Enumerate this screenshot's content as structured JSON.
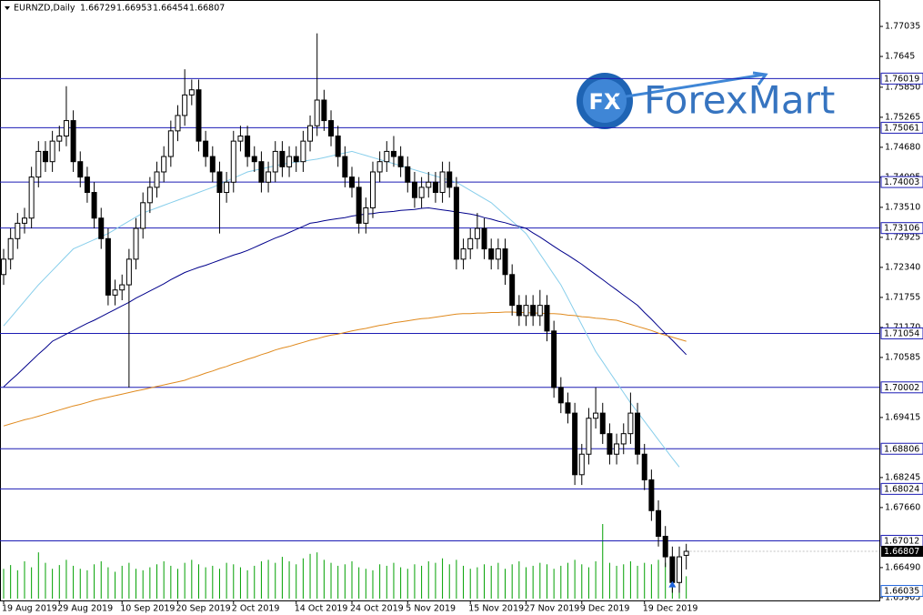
{
  "chart_data": {
    "type": "candlestick",
    "title": "EURNZD,Daily",
    "watermark": "ForexMart",
    "logo_text": "FX",
    "categories": [
      "19 Aug 2019",
      null,
      null,
      null,
      null,
      null,
      null,
      null,
      "29 Aug 2019",
      null,
      null,
      null,
      null,
      null,
      null,
      null,
      null,
      "10 Sep 2019",
      null,
      null,
      null,
      null,
      null,
      null,
      null,
      "20 Sep 2019",
      null,
      null,
      null,
      null,
      null,
      null,
      null,
      "2 Oct 2019",
      null,
      null,
      null,
      null,
      null,
      null,
      null,
      null,
      "14 Oct 2019",
      null,
      null,
      null,
      null,
      null,
      null,
      null,
      "24 Oct 2019",
      null,
      null,
      null,
      null,
      null,
      null,
      null,
      "5 Nov 2019",
      null,
      null,
      null,
      null,
      null,
      null,
      null,
      null,
      "15 Nov 2019",
      null,
      null,
      null,
      null,
      null,
      null,
      null,
      "27 Nov 2019",
      null,
      null,
      null,
      null,
      null,
      null,
      null,
      "9 Dec 2019",
      null,
      null,
      null,
      null,
      null,
      null,
      null,
      null,
      "19 Dec 2019",
      null,
      null,
      null,
      null,
      null,
      null
    ],
    "open": [
      1.722,
      1.725,
      1.729,
      1.732,
      1.733,
      1.741,
      1.746,
      1.744,
      1.748,
      1.749,
      1.752,
      1.744,
      1.741,
      1.738,
      1.733,
      1.729,
      1.718,
      1.719,
      1.72,
      1.725,
      1.731,
      1.736,
      1.739,
      1.742,
      1.745,
      1.75,
      1.753,
      1.757,
      1.758,
      1.748,
      1.745,
      1.742,
      1.738,
      1.74,
      1.748,
      1.749,
      1.745,
      1.744,
      1.74,
      1.742,
      1.746,
      1.743,
      1.745,
      1.744,
      1.748,
      1.751,
      1.756,
      1.752,
      1.749,
      1.745,
      1.741,
      1.739,
      1.732,
      1.735,
      1.742,
      1.744,
      1.746,
      1.745,
      1.743,
      1.74,
      1.737,
      1.739,
      1.74,
      1.738,
      1.742,
      1.739,
      1.725,
      1.727,
      1.729,
      1.731,
      1.727,
      1.725,
      1.727,
      1.722,
      1.716,
      1.714,
      1.716,
      1.714,
      1.716,
      1.711,
      1.7,
      1.697,
      1.695,
      1.683,
      1.687,
      1.694,
      1.695,
      1.691,
      1.687,
      1.689,
      1.691,
      1.695,
      1.687,
      1.682,
      1.676,
      1.671,
      1.667,
      1.662,
      1.66729
    ],
    "high": [
      1.727,
      1.731,
      1.734,
      1.735,
      1.743,
      1.748,
      1.748,
      1.75,
      1.751,
      1.7587,
      1.754,
      1.746,
      1.743,
      1.74,
      1.735,
      1.731,
      1.721,
      1.722,
      1.727,
      1.733,
      1.738,
      1.741,
      1.744,
      1.747,
      1.752,
      1.755,
      1.762,
      1.76,
      1.76,
      1.75,
      1.747,
      1.744,
      1.742,
      1.75,
      1.751,
      1.751,
      1.747,
      1.746,
      1.744,
      1.748,
      1.748,
      1.747,
      1.747,
      1.75,
      1.753,
      1.769,
      1.758,
      1.754,
      1.751,
      1.747,
      1.743,
      1.741,
      1.737,
      1.744,
      1.746,
      1.748,
      1.749,
      1.747,
      1.745,
      1.742,
      1.741,
      1.742,
      1.742,
      1.744,
      1.744,
      1.741,
      1.729,
      1.731,
      1.734,
      1.733,
      1.729,
      1.729,
      1.729,
      1.724,
      1.718,
      1.718,
      1.718,
      1.719,
      1.718,
      1.713,
      1.702,
      1.699,
      1.697,
      1.689,
      1.696,
      1.7,
      1.697,
      1.693,
      1.691,
      1.693,
      1.699,
      1.697,
      1.689,
      1.684,
      1.678,
      1.673,
      1.669,
      1.669,
      1.66953
    ],
    "low": [
      1.72,
      1.723,
      1.727,
      1.73,
      1.731,
      1.739,
      1.742,
      1.742,
      1.746,
      1.747,
      1.742,
      1.739,
      1.736,
      1.731,
      1.727,
      1.716,
      1.716,
      1.717,
      1.7,
      1.723,
      1.729,
      1.734,
      1.737,
      1.74,
      1.743,
      1.748,
      1.751,
      1.755,
      1.746,
      1.743,
      1.74,
      1.73,
      1.736,
      1.738,
      1.746,
      1.743,
      1.742,
      1.738,
      1.738,
      1.74,
      1.741,
      1.741,
      1.742,
      1.742,
      1.746,
      1.749,
      1.75,
      1.747,
      1.743,
      1.739,
      1.737,
      1.73,
      1.73,
      1.733,
      1.74,
      1.742,
      1.743,
      1.741,
      1.738,
      1.735,
      1.735,
      1.737,
      1.736,
      1.736,
      1.737,
      1.723,
      1.723,
      1.725,
      1.727,
      1.725,
      1.723,
      1.723,
      1.72,
      1.714,
      1.712,
      1.712,
      1.712,
      1.712,
      1.709,
      1.698,
      1.695,
      1.693,
      1.681,
      1.681,
      1.685,
      1.692,
      1.689,
      1.685,
      1.685,
      1.687,
      1.689,
      1.685,
      1.68,
      1.674,
      1.669,
      1.665,
      1.66,
      1.66,
      1.66454
    ],
    "close": [
      1.725,
      1.729,
      1.732,
      1.733,
      1.741,
      1.746,
      1.744,
      1.748,
      1.749,
      1.752,
      1.744,
      1.741,
      1.738,
      1.733,
      1.729,
      1.718,
      1.719,
      1.72,
      1.725,
      1.731,
      1.736,
      1.739,
      1.742,
      1.745,
      1.75,
      1.753,
      1.757,
      1.758,
      1.748,
      1.745,
      1.742,
      1.738,
      1.74,
      1.748,
      1.749,
      1.745,
      1.744,
      1.74,
      1.742,
      1.746,
      1.743,
      1.745,
      1.744,
      1.748,
      1.751,
      1.756,
      1.752,
      1.749,
      1.745,
      1.741,
      1.739,
      1.732,
      1.735,
      1.742,
      1.744,
      1.746,
      1.745,
      1.743,
      1.74,
      1.737,
      1.739,
      1.74,
      1.738,
      1.742,
      1.739,
      1.725,
      1.727,
      1.729,
      1.731,
      1.727,
      1.725,
      1.727,
      1.722,
      1.716,
      1.714,
      1.716,
      1.714,
      1.716,
      1.711,
      1.7,
      1.697,
      1.695,
      1.683,
      1.687,
      1.694,
      1.695,
      1.691,
      1.687,
      1.689,
      1.691,
      1.695,
      1.687,
      1.682,
      1.676,
      1.671,
      1.667,
      1.662,
      1.667,
      1.66807
    ],
    "volumes": [
      40,
      45,
      38,
      50,
      42,
      62,
      48,
      40,
      45,
      52,
      44,
      40,
      38,
      46,
      50,
      42,
      36,
      44,
      48,
      40,
      38,
      42,
      46,
      50,
      44,
      40,
      48,
      52,
      46,
      42,
      44,
      40,
      48,
      46,
      42,
      38,
      44,
      50,
      52,
      48,
      56,
      50,
      46,
      54,
      60,
      62,
      52,
      48,
      44,
      46,
      50,
      42,
      40,
      38,
      46,
      44,
      48,
      42,
      40,
      46,
      44,
      50,
      48,
      54,
      46,
      52,
      44,
      40,
      42,
      46,
      44,
      48,
      40,
      46,
      50,
      42,
      44,
      48,
      46,
      40,
      44,
      48,
      52,
      46,
      42,
      50,
      100,
      48,
      44,
      46,
      50,
      44,
      48,
      46,
      52,
      48,
      46,
      50,
      30
    ],
    "volume_color": "#00a000",
    "moving_averages": [
      {
        "color": "#87ceeb",
        "values": [
          1.712,
          1.7136,
          1.7152,
          1.7168,
          1.7184,
          1.72,
          1.7214,
          1.7228,
          1.7242,
          1.7256,
          1.727,
          1.7276,
          1.7282,
          1.7288,
          1.7294,
          1.73,
          1.7308,
          1.7316,
          1.7324,
          1.7332,
          1.734,
          1.7345,
          1.735,
          1.7355,
          1.736,
          1.7365,
          1.737,
          1.7375,
          1.738,
          1.7385,
          1.739,
          1.7396,
          1.7402,
          1.7408,
          1.7414,
          1.742,
          1.7423,
          1.7426,
          1.7429,
          1.7432,
          1.7435,
          1.7437,
          1.7439,
          1.7441,
          1.7443,
          1.7445,
          1.7448,
          1.7451,
          1.7454,
          1.7457,
          1.746,
          1.7456,
          1.7452,
          1.7448,
          1.7444,
          1.744,
          1.7436,
          1.7432,
          1.7428,
          1.7424,
          1.742,
          1.7416,
          1.7412,
          1.7408,
          1.7404,
          1.74,
          1.7392,
          1.7384,
          1.7376,
          1.7368,
          1.736,
          1.7348,
          1.7336,
          1.7324,
          1.7312,
          1.73,
          1.728,
          1.726,
          1.724,
          1.722,
          1.72,
          1.7174,
          1.7148,
          1.7122,
          1.7096,
          1.707,
          1.705,
          1.703,
          1.701,
          1.699,
          1.697,
          1.6952,
          1.6934,
          1.6916,
          1.6898,
          1.688,
          1.6862,
          1.6845,
          null
        ]
      },
      {
        "color": "#00008b",
        "values": [
          1.7001,
          1.7014,
          1.7026,
          1.7039,
          1.7052,
          1.7065,
          1.7077,
          1.709,
          1.7097,
          1.7104,
          1.7111,
          1.7118,
          1.7125,
          1.7131,
          1.7138,
          1.7145,
          1.7152,
          1.7159,
          1.7166,
          1.7174,
          1.7181,
          1.7188,
          1.7195,
          1.7202,
          1.721,
          1.7217,
          1.7224,
          1.7229,
          1.7234,
          1.7238,
          1.7243,
          1.7248,
          1.7253,
          1.7258,
          1.7262,
          1.7267,
          1.7273,
          1.7279,
          1.7285,
          1.7291,
          1.7296,
          1.7302,
          1.7308,
          1.7314,
          1.732,
          1.7322,
          1.7325,
          1.7327,
          1.7329,
          1.7331,
          1.7334,
          1.7336,
          1.7338,
          1.7339,
          1.7341,
          1.7342,
          1.7343,
          1.7345,
          1.7346,
          1.7347,
          1.7349,
          1.735,
          1.7348,
          1.7346,
          1.7344,
          1.7342,
          1.734,
          1.7338,
          1.7335,
          1.7331,
          1.7328,
          1.7324,
          1.7321,
          1.7317,
          1.7314,
          1.731,
          1.7301,
          1.7293,
          1.7284,
          1.7275,
          1.7266,
          1.7258,
          1.7249,
          1.724,
          1.723,
          1.722,
          1.721,
          1.72,
          1.719,
          1.718,
          1.717,
          1.716,
          1.7146,
          1.7133,
          1.7119,
          1.7105,
          1.7092,
          1.7078,
          1.7064
        ]
      },
      {
        "color": "#e08a1e",
        "values": [
          1.6925,
          1.6929,
          1.6933,
          1.6937,
          1.694,
          1.6944,
          1.6948,
          1.6952,
          1.6956,
          1.696,
          1.6964,
          1.6967,
          1.6971,
          1.6975,
          1.6978,
          1.6981,
          1.6984,
          1.6987,
          1.699,
          1.6993,
          1.6996,
          1.6999,
          1.7002,
          1.7005,
          1.7008,
          1.7011,
          1.7014,
          1.7019,
          1.7023,
          1.7028,
          1.7032,
          1.7037,
          1.7041,
          1.7046,
          1.705,
          1.7055,
          1.7059,
          1.7064,
          1.7068,
          1.7073,
          1.7077,
          1.708,
          1.7084,
          1.7088,
          1.7092,
          1.7095,
          1.7099,
          1.7102,
          1.7104,
          1.7107,
          1.711,
          1.7113,
          1.7115,
          1.7118,
          1.7121,
          1.7123,
          1.7126,
          1.7128,
          1.713,
          1.7132,
          1.7134,
          1.7135,
          1.7137,
          1.7139,
          1.7141,
          1.7143,
          1.7144,
          1.7144,
          1.7145,
          1.7145,
          1.7146,
          1.7146,
          1.7147,
          1.7147,
          1.7146,
          1.7146,
          1.7145,
          1.7145,
          1.7144,
          1.7144,
          1.7143,
          1.7141,
          1.714,
          1.7138,
          1.7137,
          1.7135,
          1.7134,
          1.7132,
          1.7131,
          1.7127,
          1.7123,
          1.7119,
          1.7115,
          1.7111,
          1.7106,
          1.7102,
          1.7098,
          1.7094,
          1.709
        ]
      }
    ],
    "levels": [
      1.76019,
      1.75061,
      1.74003,
      1.73106,
      1.71054,
      1.70002,
      1.68806,
      1.68024,
      1.67012
    ],
    "level_color": "#1c1cb4",
    "arrow_price": 1.66035,
    "arrow_color": "#1e64dc",
    "ylim": [
      1.6585,
      1.7755
    ],
    "yticks": [
      1.77035,
      1.7645,
      {
        "value": 1.7585,
        "label": "1.75850"
      },
      1.75265,
      {
        "value": 1.7468,
        "label": "1.74680"
      },
      1.74095,
      {
        "value": 1.7351,
        "label": "1.73510"
      },
      1.72925,
      {
        "value": 1.7234,
        "label": "1.72340"
      },
      1.71755,
      {
        "value": 1.7117,
        "label": "1.71170"
      },
      1.70585,
      1.69415,
      1.68245,
      {
        "value": 1.6766,
        "label": "1.67660"
      },
      {
        "value": 1.6649,
        "label": "1.66490"
      },
      1.65905
    ]
  }
}
